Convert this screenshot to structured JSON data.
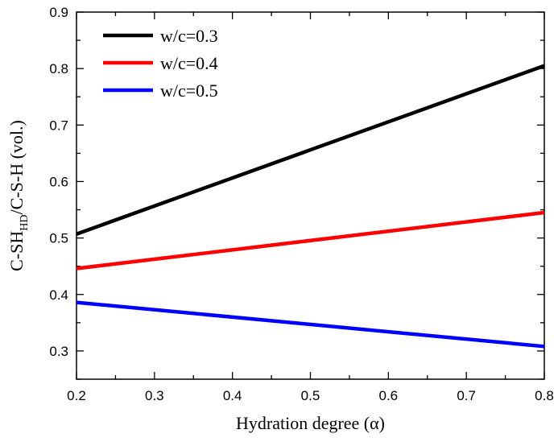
{
  "chart_data": {
    "type": "line",
    "xlabel": "Hydration degree (α)",
    "ylabel": {
      "prefix": "C-SH",
      "subscript": "HD",
      "suffix": "/C-S-H (vol.)"
    },
    "xlim": [
      0.2,
      0.8
    ],
    "ylim": [
      0.25,
      0.9
    ],
    "xticks": [
      "0.2",
      "0.3",
      "0.4",
      "0.5",
      "0.6",
      "0.7",
      "0.8"
    ],
    "yticks": [
      "0.3",
      "0.4",
      "0.5",
      "0.6",
      "0.7",
      "0.8",
      "0.9"
    ],
    "grid": false,
    "legend_position": "top-left",
    "series": [
      {
        "name": "w/c=0.3",
        "color": "#000000",
        "x": [
          0.2,
          0.8
        ],
        "y": [
          0.507,
          0.805
        ]
      },
      {
        "name": "w/c=0.4",
        "color": "#ff0000",
        "x": [
          0.2,
          0.8
        ],
        "y": [
          0.446,
          0.545
        ]
      },
      {
        "name": "w/c=0.5",
        "color": "#0000ff",
        "x": [
          0.2,
          0.8
        ],
        "y": [
          0.386,
          0.308
        ]
      }
    ]
  }
}
